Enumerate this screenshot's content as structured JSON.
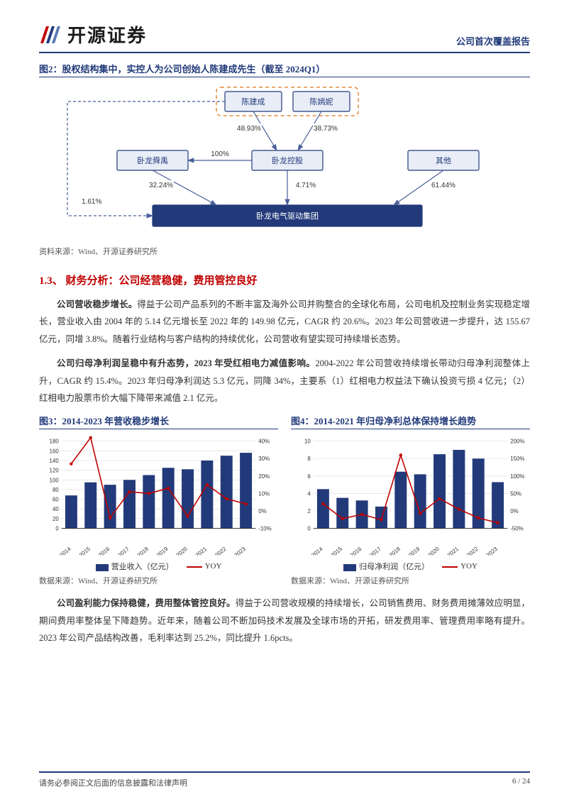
{
  "header": {
    "company_name": "开源证券",
    "report_type": "公司首次覆盖报告"
  },
  "figure2": {
    "title": "图2：股权结构集中，实控人为公司创始人陈建成先生（截至 2024Q1）",
    "source": "资料来源：Wind、开源证券研究所",
    "diagram": {
      "nodes": {
        "chen_jiancheng": {
          "label": "陈建成"
        },
        "chen_yanni": {
          "label": "陈嫣妮"
        },
        "wolong_shelan": {
          "label": "卧龙舜禹"
        },
        "wolong_holding": {
          "label": "卧龙控股"
        },
        "others": {
          "label": "其他"
        },
        "wolong_group": {
          "label": "卧龙电气驱动集团"
        }
      },
      "edges": {
        "e_cj_holding": "48.93%",
        "e_cy_holding": "38.73%",
        "e_holding_shelan": "100%",
        "e_shelan_group": "32.24%",
        "e_holding_group": "4.71%",
        "e_others_group": "61.44%",
        "e_cj_direct": "1.61%"
      },
      "node_fill": "#e8edf7",
      "node_border": "#223a7a",
      "group_fill": "#223a7a",
      "group_text": "#ffffff",
      "dash_color": "#e28b3a",
      "edge_color": "#4a5f9a",
      "label_color": "#333333",
      "label_fontsize": 10
    }
  },
  "section_1_3": {
    "heading": "1.3、 财务分析：公司经营稳健，费用管控良好",
    "para1_bold": "公司营收稳步增长。",
    "para1": "得益于公司产品系列的不断丰富及海外公司并购整合的全球化布局，公司电机及控制业务实现稳定增长，营业收入由 2004 年的 5.14 亿元增长至 2022 年的 149.98 亿元，CAGR 约 20.6%。2023 年公司营收进一步提升，达 155.67 亿元，同增 3.8%。随着行业结构与客户结构的持续优化，公司营收有望实现可持续增长态势。",
    "para2_bold": "公司归母净利润呈稳中有升态势，2023 年受红相电力减值影响。",
    "para2": "2004-2022 年公司营收持续增长带动归母净利润整体上升，CAGR 约 15.4%。2023 年归母净利润达 5.3 亿元，同降 34%，主要系（1）红相电力权益法下确认投资亏损 4 亿元；（2）红相电力股票市价大幅下降带来减值 2.1 亿元。",
    "para3_bold": "公司盈利能力保持稳健，费用整体管控良好。",
    "para3": "得益于公司营收规模的持续增长，公司销售费用、财务费用摊薄效应明显，期间费用率整体呈下降趋势。近年来，随着公司不断加码技术发展及全球市场的开拓，研发费用率、管理费用率略有提升。2023 年公司产品结构改善，毛利率达到 25.2%，同比提升 1.6pcts。"
  },
  "figure3": {
    "title": "图3：2014-2023 年营收稳步增长",
    "source": "数据来源：Wind、开源证券研究所",
    "chart": {
      "type": "bar+line",
      "categories": [
        "2014",
        "2015",
        "2016",
        "2017",
        "2018",
        "2019",
        "2020",
        "2021",
        "2022",
        "2023"
      ],
      "bar_values": [
        68,
        95,
        90,
        100,
        110,
        125,
        122,
        140,
        150,
        156
      ],
      "line_values": [
        27,
        42,
        -4,
        11,
        10,
        13,
        -3,
        15,
        7,
        4
      ],
      "y1_label_ticks": [
        0,
        20,
        40,
        60,
        80,
        100,
        120,
        140,
        160,
        180
      ],
      "y2_label_ticks": [
        -10,
        0,
        10,
        20,
        30,
        40
      ],
      "bar_color": "#223a7a",
      "line_color": "#c00000",
      "grid_color": "#d9d9d9",
      "bg": "#ffffff",
      "axis_fontsize": 8,
      "bar_legend": "营业收入（亿元）",
      "line_legend": "YOY"
    }
  },
  "figure4": {
    "title": "图4：2014-2021 年归母净利总体保持增长趋势",
    "source": "数据来源：Wind、开源证券研究所",
    "chart": {
      "type": "bar+line",
      "categories": [
        "2014",
        "2015",
        "2016",
        "2017",
        "2018",
        "2019",
        "2020",
        "2021",
        "2022",
        "2023"
      ],
      "bar_values": [
        4.5,
        3.5,
        3.2,
        2.5,
        6.5,
        6.2,
        8.5,
        9.0,
        8.0,
        5.3
      ],
      "line_values": [
        20,
        -22,
        -10,
        -25,
        160,
        -7,
        35,
        5,
        -20,
        -34
      ],
      "y1_label_ticks": [
        0,
        2,
        4,
        6,
        8,
        10
      ],
      "y2_label_ticks": [
        -50,
        0,
        50,
        100,
        150,
        200
      ],
      "bar_color": "#223a7a",
      "line_color": "#c00000",
      "grid_color": "#d9d9d9",
      "bg": "#ffffff",
      "axis_fontsize": 8,
      "bar_legend": "归母净利润（亿元）",
      "line_legend": "YOY"
    }
  },
  "footer": {
    "disclaimer": "请务必参阅正文后面的信息披露和法律声明",
    "page": "6 / 24"
  }
}
